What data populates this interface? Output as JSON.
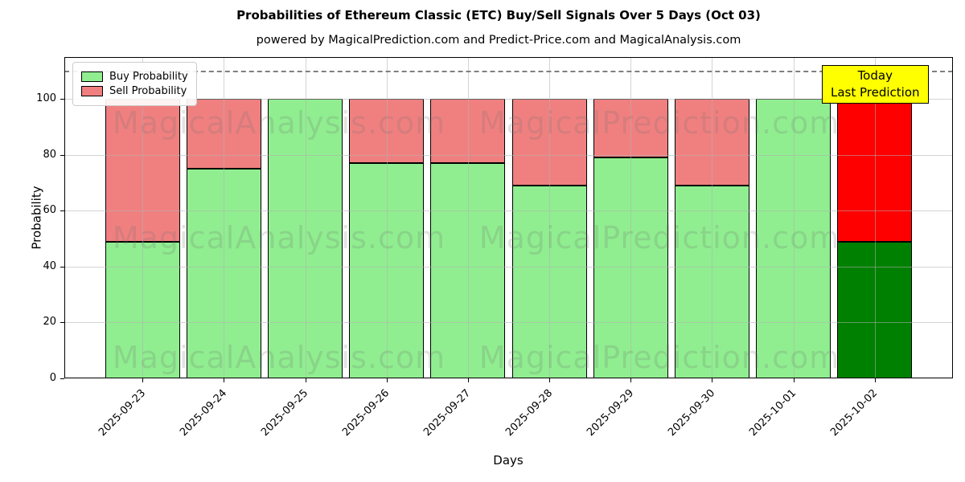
{
  "chart_data": {
    "type": "bar",
    "stacked": true,
    "title": "Probabilities of Ethereum Classic (ETC) Buy/Sell Signals Over 5 Days (Oct 03)",
    "subtitle": "powered by MagicalPrediction.com and Predict-Price.com and MagicalAnalysis.com",
    "xlabel": "Days",
    "ylabel": "Probability",
    "categories": [
      "2025-09-23",
      "2025-09-24",
      "2025-09-25",
      "2025-09-26",
      "2025-09-27",
      "2025-09-28",
      "2025-09-29",
      "2025-09-30",
      "2025-10-01",
      "2025-10-02"
    ],
    "series": [
      {
        "name": "Buy Probability",
        "color": "#90EE90",
        "values": [
          49,
          75,
          100,
          77,
          77,
          69,
          79,
          69,
          100,
          49
        ]
      },
      {
        "name": "Sell Probability",
        "color": "#F08080",
        "values": [
          51,
          25,
          0,
          23,
          23,
          31,
          21,
          31,
          0,
          51
        ]
      }
    ],
    "today_bar": {
      "index": 9,
      "buy_color": "#008000",
      "sell_color": "#FF0000"
    },
    "yticks": [
      0,
      20,
      40,
      60,
      80,
      100
    ],
    "ylim": [
      0,
      115
    ],
    "dashed_line_y": 110,
    "grid": true,
    "legend_position": "top-left",
    "annotation": {
      "lines": [
        "Today",
        "Last Prediction"
      ],
      "bg_color": "#FFFF00"
    },
    "watermarks": [
      "MagicalAnalysis.com",
      "MagicalPrediction.com"
    ]
  }
}
